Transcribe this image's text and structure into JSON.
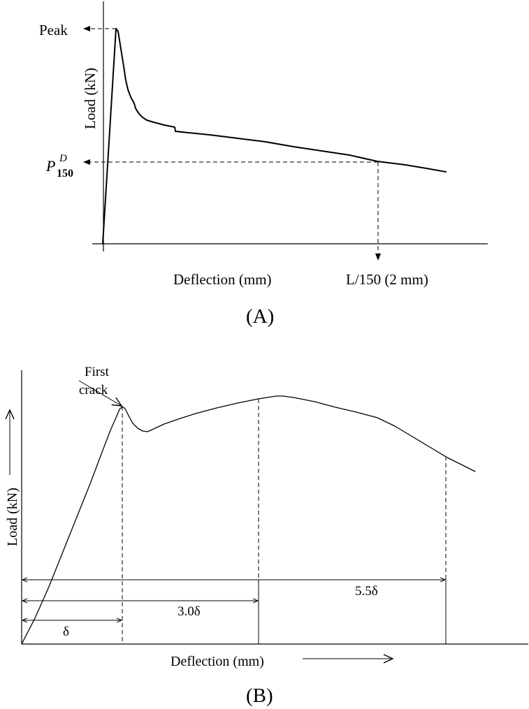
{
  "panel_a": {
    "y_axis_label": "Load (kN)",
    "x_axis_label": "Deflection (mm)",
    "peak_label": "Peak",
    "p150_symbol": "P",
    "p150_superscript": "D",
    "p150_subscript": "150",
    "x_marker_label": "L/150 (2 mm)",
    "caption": "(A)"
  },
  "panel_b": {
    "first_crack_line1": "First",
    "first_crack_line2": "crack",
    "y_axis_label": "Load (kN)",
    "x_axis_label": "Deflection (mm)",
    "dim_1": "δ",
    "dim_2": "3.0δ",
    "dim_3": "5.5δ",
    "caption": "(B)"
  }
}
